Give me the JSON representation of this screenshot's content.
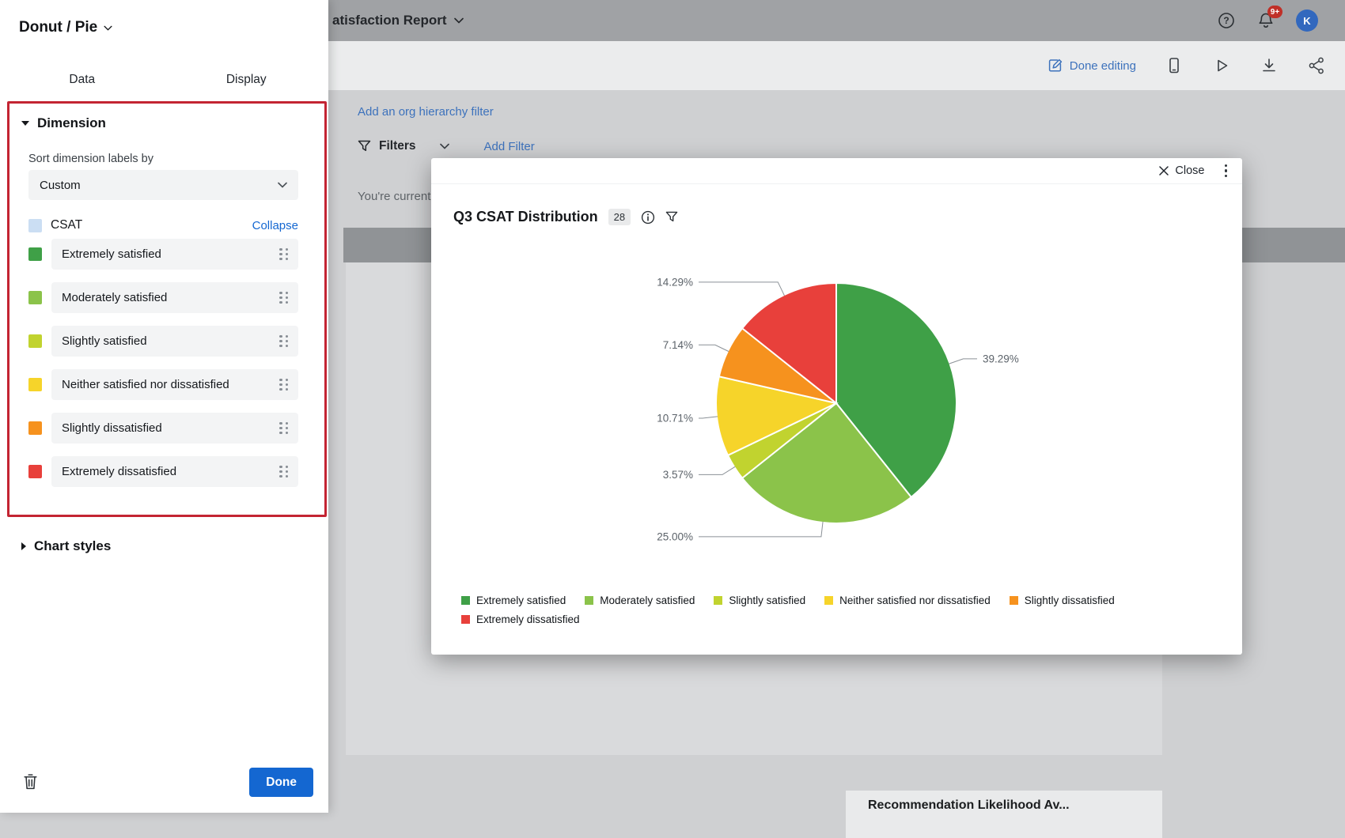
{
  "colors": {
    "accent": "#1467D1",
    "muted_accent": "#3D72BC",
    "annotation_red": "#C32432",
    "avatar_bg": "#3268BE",
    "badge_red": "#C03028"
  },
  "topbar": {
    "report_title": "atisfaction Report",
    "help_glyph": "?",
    "notification_badge": "9+",
    "avatar_initial": "K"
  },
  "toolbar": {
    "done_editing": "Done editing"
  },
  "page": {
    "org_filter_link": "Add an org hierarchy filter",
    "filters_label": "Filters",
    "add_filter_link": "Add Filter",
    "current_text": "You're current",
    "background_card_title": "Recommendation Likelihood Av..."
  },
  "panel": {
    "title": "Donut / Pie",
    "tabs": {
      "data": "Data",
      "display": "Display"
    },
    "dimension": {
      "header": "Dimension",
      "sort_label": "Sort dimension labels by",
      "sort_value": "Custom",
      "group_label": "CSAT",
      "group_swatch": "#CBDEF3",
      "collapse_link": "Collapse",
      "items": [
        {
          "label": "Extremely satisfied",
          "color": "#3FA047"
        },
        {
          "label": "Moderately satisfied",
          "color": "#8BC34A"
        },
        {
          "label": "Slightly satisfied",
          "color": "#C1D32F"
        },
        {
          "label": "Neither satisfied nor dissatisfied",
          "color": "#F6D42A"
        },
        {
          "label": "Slightly dissatisfied",
          "color": "#F6921E"
        },
        {
          "label": "Extremely dissatisfied",
          "color": "#E8403B"
        }
      ]
    },
    "chart_styles_label": "Chart styles",
    "done_button": "Done"
  },
  "modal": {
    "close_label": "Close",
    "title": "Q3 CSAT Distribution",
    "count_badge": "28"
  },
  "chart_data": {
    "type": "pie",
    "title": "Q3 CSAT Distribution",
    "labels": [
      "Extremely satisfied",
      "Moderately satisfied",
      "Slightly satisfied",
      "Neither satisfied nor dissatisfied",
      "Slightly dissatisfied",
      "Extremely dissatisfied"
    ],
    "values": [
      39.29,
      25.0,
      3.57,
      10.71,
      7.14,
      14.29
    ],
    "value_labels": [
      "39.29%",
      "25.00%",
      "3.57%",
      "10.71%",
      "7.14%",
      "14.29%"
    ],
    "colors": [
      "#3FA047",
      "#8BC34A",
      "#C1D32F",
      "#F6D42A",
      "#F6921E",
      "#E8403B"
    ],
    "start_angle_deg": 0,
    "direction": "clockwise",
    "legend_position": "bottom"
  }
}
